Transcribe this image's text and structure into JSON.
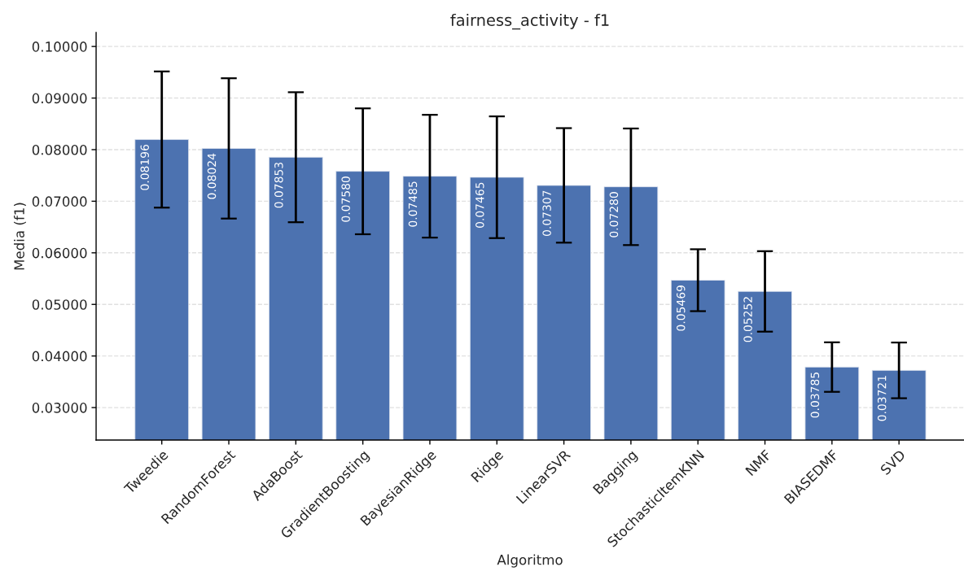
{
  "chart_data": {
    "type": "bar",
    "title": "fairness_activity - f1",
    "xlabel": "Algoritmo",
    "ylabel": "Media (f1)",
    "categories": [
      "Tweedie",
      "RandomForest",
      "AdaBoost",
      "GradientBoosting",
      "BayesianRidge",
      "Ridge",
      "LinearSVR",
      "Bagging",
      "StochasticItemKNN",
      "NMF",
      "BIASEDMF",
      "SVD"
    ],
    "values": [
      0.08196,
      0.08024,
      0.07853,
      0.0758,
      0.07485,
      0.07465,
      0.07307,
      0.0728,
      0.05469,
      0.05252,
      0.03785,
      0.03721
    ],
    "value_labels": [
      "0.08196",
      "0.08024",
      "0.07853",
      "0.07580",
      "0.07485",
      "0.07465",
      "0.07307",
      "0.07280",
      "0.05469",
      "0.05252",
      "0.03785",
      "0.03721"
    ],
    "errors": [
      0.0132,
      0.0136,
      0.0126,
      0.0122,
      0.0119,
      0.0118,
      0.0111,
      0.0113,
      0.006,
      0.0078,
      0.0048,
      0.0054
    ],
    "color": "#4c72b0",
    "ylim": [
      0.0237,
      0.1027
    ],
    "yticks": [
      {
        "value": 0.03,
        "label": "0.03000"
      },
      {
        "value": 0.04,
        "label": "0.04000"
      },
      {
        "value": 0.05,
        "label": "0.05000"
      },
      {
        "value": 0.06,
        "label": "0.06000"
      },
      {
        "value": 0.07,
        "label": "0.07000"
      },
      {
        "value": 0.08,
        "label": "0.08000"
      },
      {
        "value": 0.09,
        "label": "0.09000"
      },
      {
        "value": 0.1,
        "label": "0.10000"
      }
    ],
    "grid": "y"
  }
}
